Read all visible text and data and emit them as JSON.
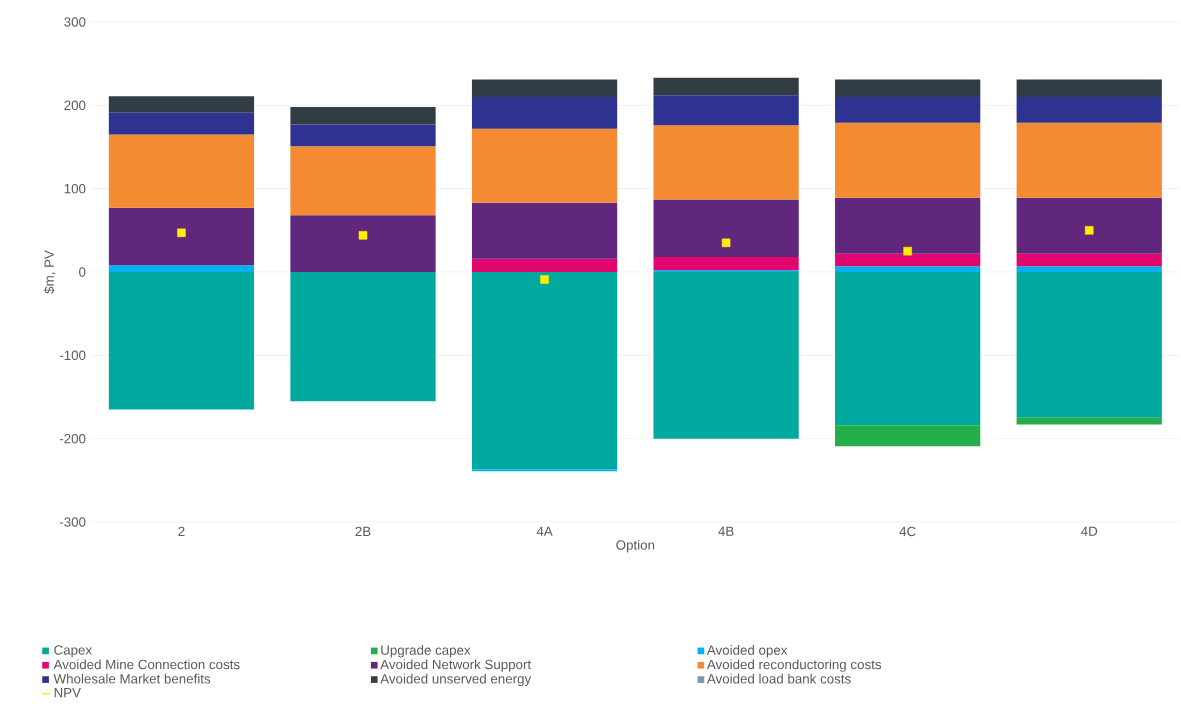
{
  "chart_data": {
    "type": "bar",
    "stacked": true,
    "xlabel": "Option",
    "ylabel": "$m, PV",
    "categories": [
      "2",
      "2B",
      "4A",
      "4B",
      "4C",
      "4D"
    ],
    "ylim": [
      -300,
      300
    ],
    "yticks": [
      -300,
      -200,
      -100,
      0,
      100,
      200,
      300
    ],
    "grid": "y",
    "legend": "bottom",
    "series": [
      {
        "name": "Capex",
        "color": "#00a99d",
        "values": [
          -165,
          -155,
          -237,
          -200,
          -184,
          -175
        ]
      },
      {
        "name": "Upgrade capex",
        "color": "#25ad4a",
        "values": [
          null,
          null,
          null,
          null,
          -25,
          -8
        ]
      },
      {
        "name": "Avoided opex",
        "color": "#00b0f0",
        "values": [
          8,
          null,
          -2,
          2,
          7,
          7
        ]
      },
      {
        "name": "Avoided Mine Connection costs",
        "color": "#e2066f",
        "values": [
          null,
          null,
          16,
          16,
          15,
          15
        ]
      },
      {
        "name": "Avoided Network Support",
        "color": "#61277c",
        "values": [
          69,
          68,
          67,
          69,
          67,
          67
        ]
      },
      {
        "name": "Avoided reconductoring costs",
        "color": "#f48a32",
        "values": [
          88,
          83,
          89,
          89,
          90,
          90
        ]
      },
      {
        "name": "Wholesale Market benefits",
        "color": "#2e3392",
        "values": [
          26,
          26,
          38,
          36,
          31,
          31
        ]
      },
      {
        "name": "Avoided unserved energy",
        "color": "#313c44",
        "values": [
          20,
          21,
          21,
          21,
          21,
          21
        ]
      },
      {
        "name": "Avoided load bank costs",
        "color": "#7f97a8",
        "values": [
          null,
          null,
          null,
          null,
          null,
          null
        ]
      },
      {
        "name": "NPV",
        "type": "scatter",
        "marker": "square",
        "color": "#ffee00",
        "x": [
          "2",
          "2B",
          "4A",
          "4B",
          "4C",
          "4D"
        ],
        "values": [
          47,
          44,
          -9,
          35,
          25,
          50
        ]
      }
    ]
  }
}
